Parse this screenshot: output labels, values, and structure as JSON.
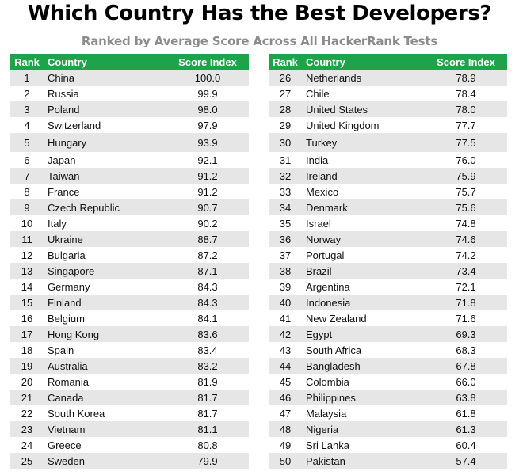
{
  "title": "Which Country Has the Best Developers?",
  "subtitle": "Ranked by Average Score Across All HackerRank Tests",
  "headers": {
    "rank": "Rank",
    "country": "Country",
    "score": "Score Index"
  },
  "colors": {
    "header_bg": "#1da44b",
    "stripe": "#e6e6e6",
    "subtitle": "#8c8c8c"
  },
  "chart_data": {
    "type": "table",
    "columns": [
      "Rank",
      "Country",
      "Score Index"
    ],
    "left_rows": [
      {
        "rank": "1",
        "country": "China",
        "score": "100.0"
      },
      {
        "rank": "2",
        "country": "Russia",
        "score": "99.9"
      },
      {
        "rank": "3",
        "country": "Poland",
        "score": "98.0"
      },
      {
        "rank": "4",
        "country": "Switzerland",
        "score": "97.9"
      },
      {
        "rank": "5",
        "country": "Hungary",
        "score": "93.9"
      },
      {
        "rank": "6",
        "country": "Japan",
        "score": "92.1"
      },
      {
        "rank": "7",
        "country": "Taiwan",
        "score": "91.2"
      },
      {
        "rank": "8",
        "country": "France",
        "score": "91.2"
      },
      {
        "rank": "9",
        "country": "Czech Republic",
        "score": "90.7"
      },
      {
        "rank": "10",
        "country": "Italy",
        "score": "90.2"
      },
      {
        "rank": "11",
        "country": "Ukraine",
        "score": "88.7"
      },
      {
        "rank": "12",
        "country": "Bulgaria",
        "score": "87.2"
      },
      {
        "rank": "13",
        "country": "Singapore",
        "score": "87.1"
      },
      {
        "rank": "14",
        "country": "Germany",
        "score": "84.3"
      },
      {
        "rank": "15",
        "country": "Finland",
        "score": "84.3"
      },
      {
        "rank": "16",
        "country": "Belgium",
        "score": "84.1"
      },
      {
        "rank": "17",
        "country": "Hong Kong",
        "score": "83.6"
      },
      {
        "rank": "18",
        "country": "Spain",
        "score": "83.4"
      },
      {
        "rank": "19",
        "country": "Australia",
        "score": "83.2"
      },
      {
        "rank": "20",
        "country": "Romania",
        "score": "81.9"
      },
      {
        "rank": "21",
        "country": "Canada",
        "score": "81.7"
      },
      {
        "rank": "22",
        "country": "South Korea",
        "score": "81.7"
      },
      {
        "rank": "23",
        "country": "Vietnam",
        "score": "81.1"
      },
      {
        "rank": "24",
        "country": "Greece",
        "score": "80.8"
      },
      {
        "rank": "25",
        "country": "Sweden",
        "score": "79.9"
      }
    ],
    "right_rows": [
      {
        "rank": "26",
        "country": "Netherlands",
        "score": "78.9"
      },
      {
        "rank": "27",
        "country": "Chile",
        "score": "78.4"
      },
      {
        "rank": "28",
        "country": "United States",
        "score": "78.0"
      },
      {
        "rank": "29",
        "country": "United Kingdom",
        "score": "77.7"
      },
      {
        "rank": "30",
        "country": "Turkey",
        "score": "77.5"
      },
      {
        "rank": "31",
        "country": "India",
        "score": "76.0"
      },
      {
        "rank": "32",
        "country": "Ireland",
        "score": "75.9"
      },
      {
        "rank": "33",
        "country": "Mexico",
        "score": "75.7"
      },
      {
        "rank": "34",
        "country": "Denmark",
        "score": "75.6"
      },
      {
        "rank": "35",
        "country": "Israel",
        "score": "74.8"
      },
      {
        "rank": "36",
        "country": "Norway",
        "score": "74.6"
      },
      {
        "rank": "37",
        "country": "Portugal",
        "score": "74.2"
      },
      {
        "rank": "38",
        "country": "Brazil",
        "score": "73.4"
      },
      {
        "rank": "39",
        "country": "Argentina",
        "score": "72.1"
      },
      {
        "rank": "40",
        "country": "Indonesia",
        "score": "71.8"
      },
      {
        "rank": "41",
        "country": "New Zealand",
        "score": "71.6"
      },
      {
        "rank": "42",
        "country": "Egypt",
        "score": "69.3"
      },
      {
        "rank": "43",
        "country": "South Africa",
        "score": "68.3"
      },
      {
        "rank": "44",
        "country": "Bangladesh",
        "score": "67.8"
      },
      {
        "rank": "45",
        "country": "Colombia",
        "score": "66.0"
      },
      {
        "rank": "46",
        "country": "Philippines",
        "score": "63.8"
      },
      {
        "rank": "47",
        "country": "Malaysia",
        "score": "61.8"
      },
      {
        "rank": "48",
        "country": "Nigeria",
        "score": "61.3"
      },
      {
        "rank": "49",
        "country": "Sri Lanka",
        "score": "60.4"
      },
      {
        "rank": "50",
        "country": "Pakistan",
        "score": "57.4"
      }
    ]
  }
}
